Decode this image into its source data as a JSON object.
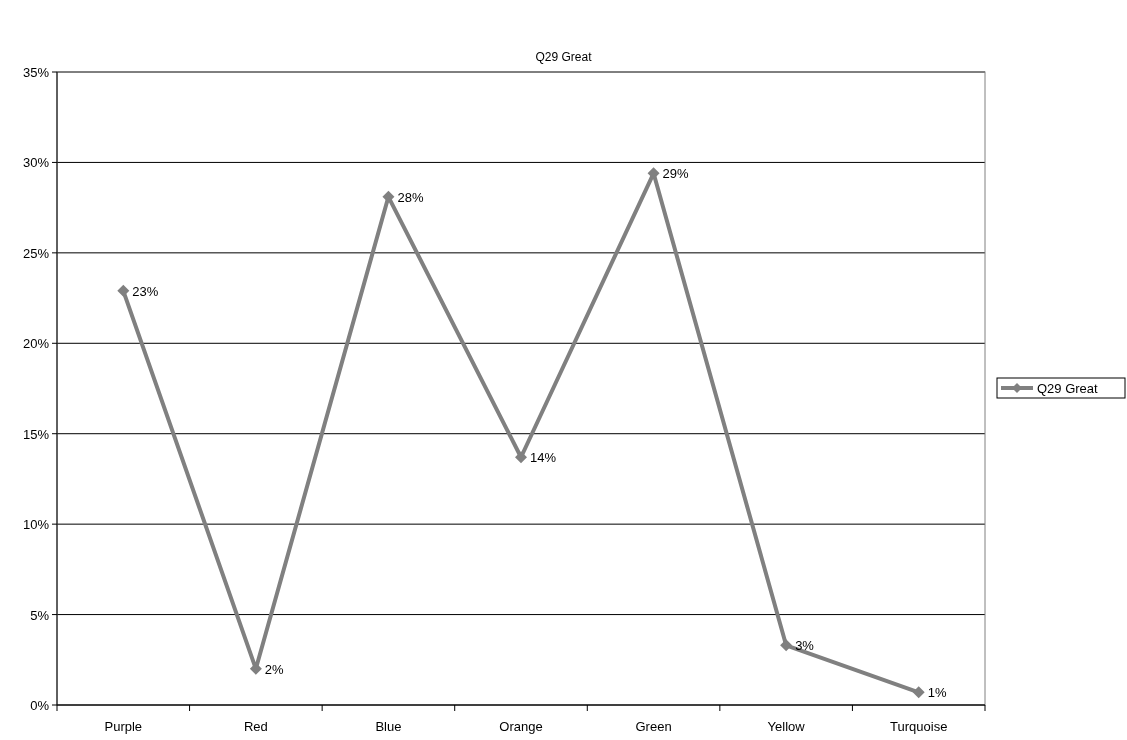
{
  "chart_data": {
    "type": "line",
    "title": "Q29 Great",
    "categories": [
      "Purple",
      "Red",
      "Blue",
      "Orange",
      "Green",
      "Yellow",
      "Turquoise"
    ],
    "series": [
      {
        "name": "Q29 Great",
        "color": "#808080",
        "values": [
          22.9,
          2.0,
          28.1,
          13.7,
          29.4,
          3.3,
          0.7
        ],
        "value_labels": [
          "23%",
          "2%",
          "28%",
          "14%",
          "29%",
          "3%",
          "1%"
        ]
      }
    ],
    "ylim": [
      0,
      35
    ],
    "yticks": [
      {
        "value": 0,
        "label": "0%"
      },
      {
        "value": 5,
        "label": "5%"
      },
      {
        "value": 10,
        "label": "10%"
      },
      {
        "value": 15,
        "label": "15%"
      },
      {
        "value": 20,
        "label": "20%"
      },
      {
        "value": 25,
        "label": "25%"
      },
      {
        "value": 30,
        "label": "30%"
      },
      {
        "value": 35,
        "label": "35%"
      }
    ],
    "grid": "y",
    "legend": "right",
    "marker": "diamond",
    "line_style": "solid"
  }
}
